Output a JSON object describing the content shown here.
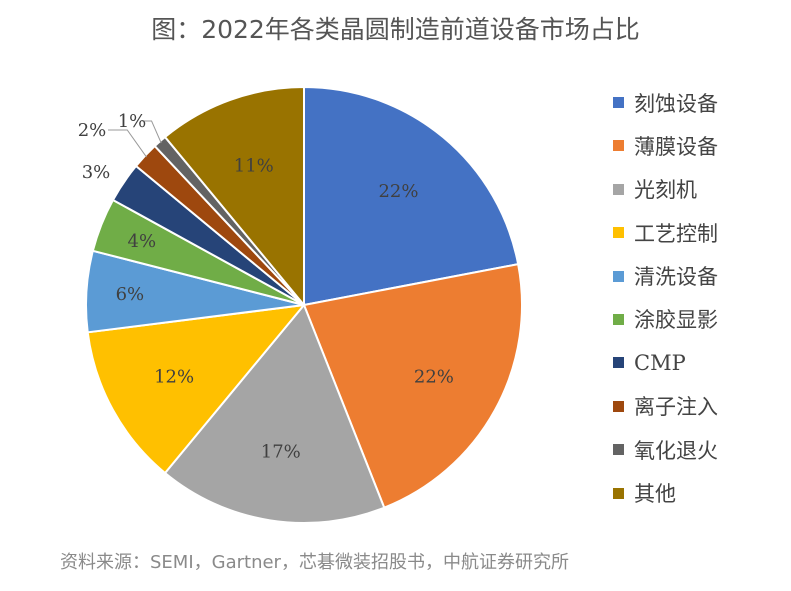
{
  "title": "图：2022年各类晶圆制造前道设备市场占比",
  "source": "资料来源：SEMI，Gartner，芯碁微装招股书，中航证券研究所",
  "chart_data": {
    "type": "pie",
    "title": "图：2022年各类晶圆制造前道设备市场占比",
    "categories": [
      "刻蚀设备",
      "薄膜设备",
      "光刻机",
      "工艺控制",
      "清洗设备",
      "涂胶显影",
      "CMP",
      "离子注入",
      "氧化退火",
      "其他"
    ],
    "values": [
      22,
      22,
      17,
      12,
      6,
      4,
      3,
      2,
      1,
      11
    ],
    "labels": [
      "22%",
      "22%",
      "17%",
      "12%",
      "6%",
      "4%",
      "3%",
      "2%",
      "1%",
      "11%"
    ],
    "colors": [
      "#4472C4",
      "#ED7D31",
      "#A5A5A5",
      "#FFC000",
      "#5B9BD5",
      "#70AD47",
      "#264478",
      "#9E480E",
      "#636363",
      "#997300"
    ],
    "legend_position": "right"
  }
}
